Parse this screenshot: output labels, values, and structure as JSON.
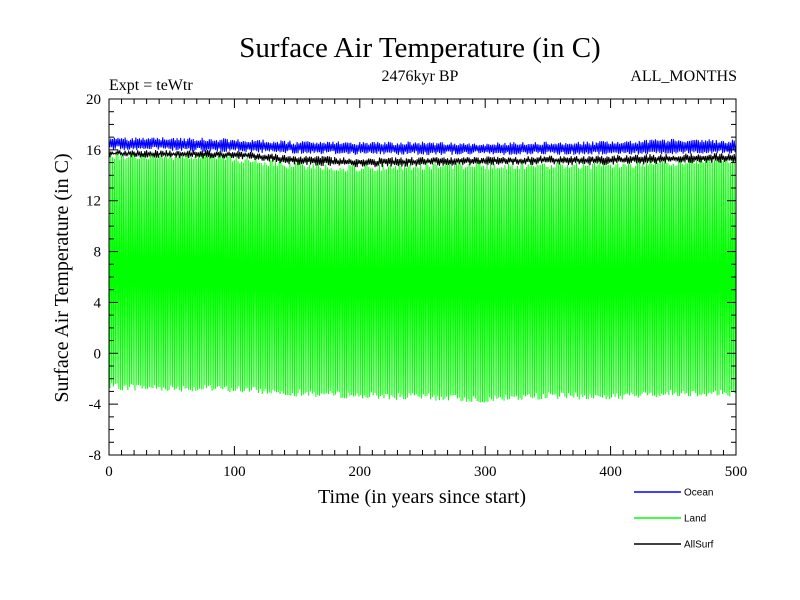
{
  "chart_data": {
    "type": "line",
    "title": "Surface Air Temperature (in C)",
    "subtitle": "2476kyr BP",
    "experiment_label": "Expt = teWtr",
    "period_label": "ALL_MONTHS",
    "xlabel": "Time (in years since start)",
    "ylabel": "Surface Air Temperature (in C)",
    "xlim": [
      0,
      500
    ],
    "ylim": [
      -8,
      20
    ],
    "x_ticks": [
      0,
      100,
      200,
      300,
      400,
      500
    ],
    "y_ticks": [
      -8,
      -4,
      0,
      4,
      8,
      12,
      16,
      20
    ],
    "x_tick_labels": [
      "0",
      "100",
      "200",
      "300",
      "400",
      "500"
    ],
    "y_tick_labels": [
      "-8",
      "-4",
      "0",
      "4",
      "8",
      "12",
      "16",
      "20"
    ],
    "legend_position": "bottom-right",
    "series": [
      {
        "name": "Ocean",
        "color": "#0000ff",
        "style": "monthly oscillation",
        "upper_envelope": [
          [
            0,
            17.0
          ],
          [
            50,
            17.0
          ],
          [
            100,
            16.9
          ],
          [
            150,
            16.7
          ],
          [
            200,
            16.7
          ],
          [
            300,
            16.6
          ],
          [
            400,
            16.7
          ],
          [
            450,
            16.9
          ],
          [
            500,
            16.8
          ]
        ],
        "lower_envelope": [
          [
            0,
            16.0
          ],
          [
            100,
            15.8
          ],
          [
            200,
            15.6
          ],
          [
            300,
            15.6
          ],
          [
            400,
            15.6
          ],
          [
            500,
            15.7
          ]
        ]
      },
      {
        "name": "Land",
        "color": "#00ff00",
        "style": "monthly oscillation",
        "upper_envelope": [
          [
            0,
            15.8
          ],
          [
            50,
            15.7
          ],
          [
            90,
            15.8
          ],
          [
            100,
            15.5
          ],
          [
            150,
            15.0
          ],
          [
            200,
            14.8
          ],
          [
            250,
            15.0
          ],
          [
            300,
            15.0
          ],
          [
            350,
            15.0
          ],
          [
            400,
            15.0
          ],
          [
            450,
            15.2
          ],
          [
            500,
            15.5
          ]
        ],
        "lower_envelope": [
          [
            0,
            -2.9
          ],
          [
            50,
            -3.0
          ],
          [
            100,
            -3.1
          ],
          [
            150,
            -3.4
          ],
          [
            200,
            -3.6
          ],
          [
            250,
            -3.7
          ],
          [
            300,
            -3.9
          ],
          [
            350,
            -3.6
          ],
          [
            400,
            -3.7
          ],
          [
            450,
            -3.4
          ],
          [
            500,
            -3.4
          ]
        ]
      },
      {
        "name": "AllSurf",
        "color": "#000000",
        "style": "monthly oscillation",
        "upper_envelope": [
          [
            0,
            16.0
          ],
          [
            100,
            16.0
          ],
          [
            150,
            15.6
          ],
          [
            200,
            15.4
          ],
          [
            300,
            15.5
          ],
          [
            400,
            15.6
          ],
          [
            500,
            15.8
          ]
        ],
        "lower_envelope": [
          [
            0,
            15.4
          ],
          [
            100,
            15.3
          ],
          [
            150,
            14.8
          ],
          [
            200,
            14.6
          ],
          [
            300,
            14.8
          ],
          [
            400,
            14.8
          ],
          [
            500,
            15.0
          ]
        ]
      }
    ]
  }
}
